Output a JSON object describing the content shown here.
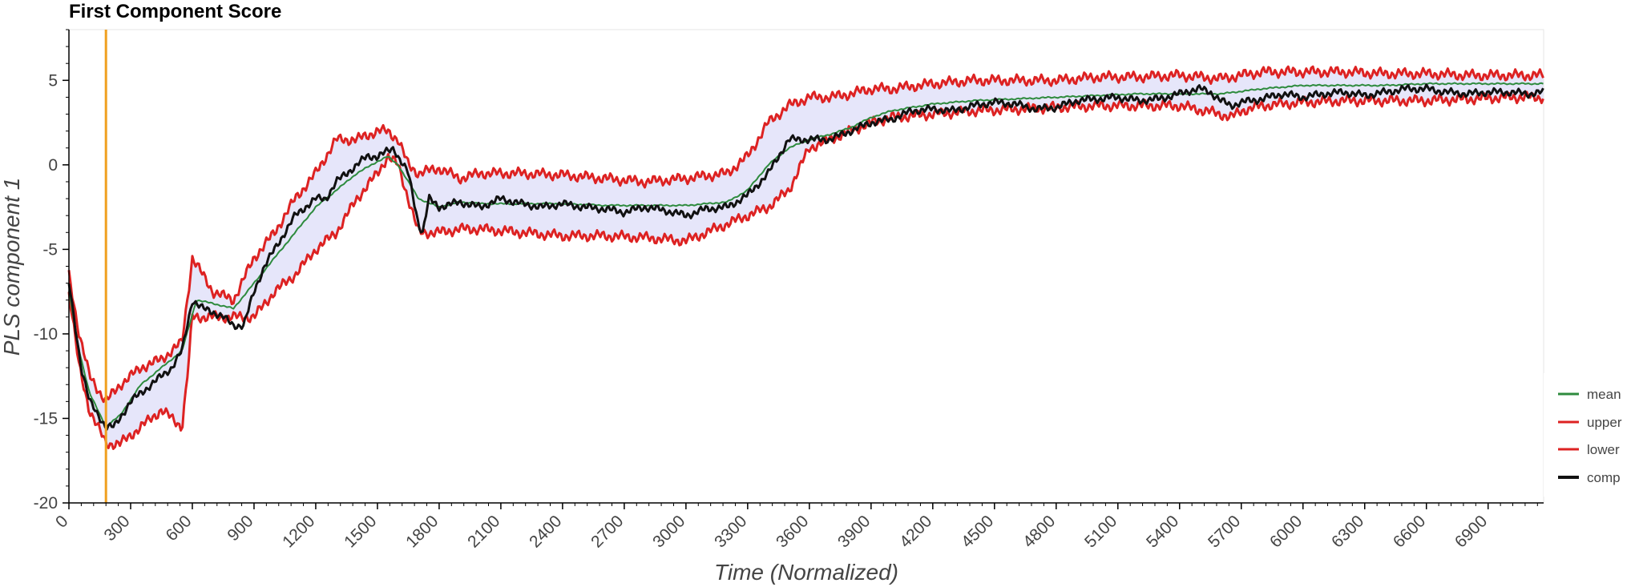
{
  "chart_data": {
    "type": "line",
    "title": "First Component Score",
    "xlabel": "Time (Normalized)",
    "ylabel": "PLS component 1",
    "xlim": [
      0,
      7170
    ],
    "ylim": [
      -20,
      8
    ],
    "x_ticks": [
      0,
      300,
      600,
      900,
      1200,
      1500,
      1800,
      2100,
      2400,
      2700,
      3000,
      3300,
      3600,
      3900,
      4200,
      4500,
      4800,
      5100,
      5400,
      5700,
      6000,
      6300,
      6600,
      6900
    ],
    "y_ticks": [
      -20,
      -15,
      -10,
      -5,
      0,
      5
    ],
    "grid": false,
    "legend_position": "right",
    "vertical_marker": {
      "x": 180,
      "color": "#f0a020"
    },
    "band_color": "#e6e6fa",
    "series": [
      {
        "name": "mean",
        "color": "#2e8b3e",
        "x": [
          0,
          50,
          100,
          180,
          250,
          350,
          450,
          550,
          620,
          700,
          800,
          900,
          1000,
          1100,
          1200,
          1300,
          1400,
          1500,
          1550,
          1600,
          1650,
          1700,
          1800,
          1900,
          2000,
          2200,
          2400,
          2600,
          2800,
          3000,
          3200,
          3300,
          3400,
          3500,
          3600,
          3700,
          3800,
          3900,
          4000,
          4200,
          4400,
          4600,
          4800,
          5000,
          5200,
          5400,
          5600,
          5800,
          6000,
          6200,
          6400,
          6600,
          6800,
          7000,
          7170
        ],
        "values": [
          -7.5,
          -11,
          -13.5,
          -15.5,
          -14.8,
          -13,
          -12,
          -11,
          -8,
          -8.2,
          -8.5,
          -7,
          -5.5,
          -4,
          -2.5,
          -1.5,
          -0.5,
          0.2,
          0.5,
          0,
          -1,
          -2,
          -2.5,
          -2.2,
          -2.3,
          -2.3,
          -2.3,
          -2.4,
          -2.4,
          -2.4,
          -2.2,
          -1.5,
          0,
          1,
          1.5,
          1.8,
          2.2,
          2.8,
          3.2,
          3.6,
          3.8,
          3.9,
          4,
          4.1,
          4.2,
          4.2,
          4.2,
          4.5,
          4.7,
          4.7,
          4.7,
          4.8,
          4.8,
          4.8,
          4.8
        ]
      },
      {
        "name": "upper",
        "color": "#dd2222",
        "x": [
          0,
          50,
          100,
          180,
          250,
          350,
          450,
          550,
          600,
          700,
          800,
          900,
          1000,
          1100,
          1200,
          1300,
          1400,
          1500,
          1550,
          1600,
          1650,
          1700,
          1800,
          1900,
          2000,
          2200,
          2400,
          2600,
          2800,
          3000,
          3200,
          3300,
          3400,
          3500,
          3600,
          3700,
          3800,
          3900,
          4000,
          4200,
          4400,
          4600,
          4800,
          5000,
          5200,
          5400,
          5600,
          5800,
          6000,
          6200,
          6400,
          6600,
          6800,
          7000,
          7170
        ],
        "values": [
          -6.5,
          -10,
          -12.5,
          -14,
          -13,
          -12,
          -11.5,
          -10.5,
          -5.5,
          -7.5,
          -8,
          -5.5,
          -4,
          -2,
          -0.5,
          1.5,
          1.5,
          2,
          2,
          1.5,
          0,
          -0.5,
          -0.2,
          -0.8,
          -0.5,
          -0.5,
          -0.6,
          -0.8,
          -1,
          -0.8,
          -0.5,
          0.5,
          2.5,
          3.5,
          4,
          4,
          4.2,
          4.5,
          4.5,
          4.8,
          5,
          5,
          5,
          5.2,
          5.2,
          5.3,
          5.1,
          5.5,
          5.5,
          5.5,
          5.4,
          5.4,
          5.3,
          5.3,
          5.3
        ]
      },
      {
        "name": "lower",
        "color": "#dd2222",
        "x": [
          0,
          50,
          100,
          180,
          250,
          350,
          450,
          550,
          580,
          600,
          700,
          800,
          900,
          1000,
          1100,
          1200,
          1300,
          1400,
          1500,
          1550,
          1600,
          1650,
          1700,
          1800,
          1900,
          2000,
          2200,
          2400,
          2600,
          2800,
          3000,
          3200,
          3300,
          3400,
          3500,
          3600,
          3700,
          3800,
          3900,
          4000,
          4200,
          4400,
          4600,
          4800,
          5000,
          5200,
          5400,
          5600,
          5650,
          5700,
          5800,
          6000,
          6200,
          6400,
          6600,
          6800,
          7000,
          7170
        ],
        "values": [
          -7.5,
          -12,
          -14.5,
          -16.5,
          -16.5,
          -15.5,
          -14.5,
          -15.5,
          -12,
          -9,
          -9,
          -9,
          -9,
          -7.5,
          -6.5,
          -5,
          -4,
          -2,
          -0.5,
          0.5,
          0,
          -2,
          -4,
          -4,
          -3.8,
          -3.8,
          -4,
          -4.2,
          -4.2,
          -4.3,
          -4.5,
          -3.5,
          -3,
          -2.5,
          -1.5,
          1,
          1.5,
          2,
          2.5,
          2.8,
          3,
          3.2,
          3.3,
          3.4,
          3.5,
          3.5,
          3.5,
          3,
          2.8,
          3.2,
          3.5,
          3.7,
          3.8,
          3.8,
          3.8,
          3.9,
          4,
          4
        ]
      },
      {
        "name": "comp",
        "color": "#111111",
        "x": [
          0,
          30,
          60,
          100,
          180,
          220,
          300,
          400,
          450,
          500,
          550,
          600,
          650,
          700,
          750,
          800,
          850,
          900,
          950,
          1000,
          1050,
          1100,
          1150,
          1200,
          1250,
          1300,
          1350,
          1400,
          1450,
          1500,
          1550,
          1580,
          1600,
          1650,
          1700,
          1720,
          1750,
          1800,
          1900,
          2000,
          2100,
          2200,
          2300,
          2400,
          2500,
          2600,
          2700,
          2800,
          2900,
          3000,
          3100,
          3200,
          3300,
          3400,
          3450,
          3500,
          3600,
          3700,
          3800,
          3900,
          4000,
          4100,
          4200,
          4300,
          4400,
          4500,
          4600,
          4700,
          4800,
          4900,
          5000,
          5100,
          5200,
          5300,
          5400,
          5450,
          5500,
          5550,
          5600,
          5650,
          5700,
          5800,
          5900,
          6000,
          6100,
          6200,
          6300,
          6400,
          6500,
          6600,
          6700,
          6800,
          6900,
          7000,
          7100,
          7170
        ],
        "values": [
          -7,
          -9.5,
          -12,
          -14,
          -15.5,
          -15.5,
          -14,
          -13,
          -12.5,
          -12,
          -11,
          -8,
          -8.5,
          -8.7,
          -9,
          -9.5,
          -9.5,
          -7.5,
          -6,
          -5,
          -4,
          -3,
          -2.5,
          -2,
          -2,
          -1,
          -0.5,
          0,
          0.5,
          0.5,
          0.8,
          1,
          0.5,
          -0.5,
          -3.5,
          -4,
          -2,
          -2.5,
          -2.2,
          -2.5,
          -2,
          -2.3,
          -2.5,
          -2.3,
          -2.5,
          -2.6,
          -2.8,
          -2.5,
          -2.7,
          -3,
          -2.6,
          -2.5,
          -1.8,
          -0.5,
          0.5,
          1.5,
          1.5,
          1.5,
          2,
          2.5,
          2.7,
          3.2,
          3.3,
          3.2,
          3.5,
          3.7,
          3.6,
          3.3,
          3.4,
          3.8,
          3.9,
          4,
          3.8,
          3.9,
          4.2,
          4.4,
          4.5,
          4.3,
          3.8,
          3.5,
          3.7,
          3.9,
          4.2,
          4,
          4.2,
          4.3,
          4.1,
          4.3,
          4.5,
          4.5,
          4.3,
          4.2,
          4.3,
          4.3,
          4.2,
          4.3
        ]
      }
    ]
  }
}
